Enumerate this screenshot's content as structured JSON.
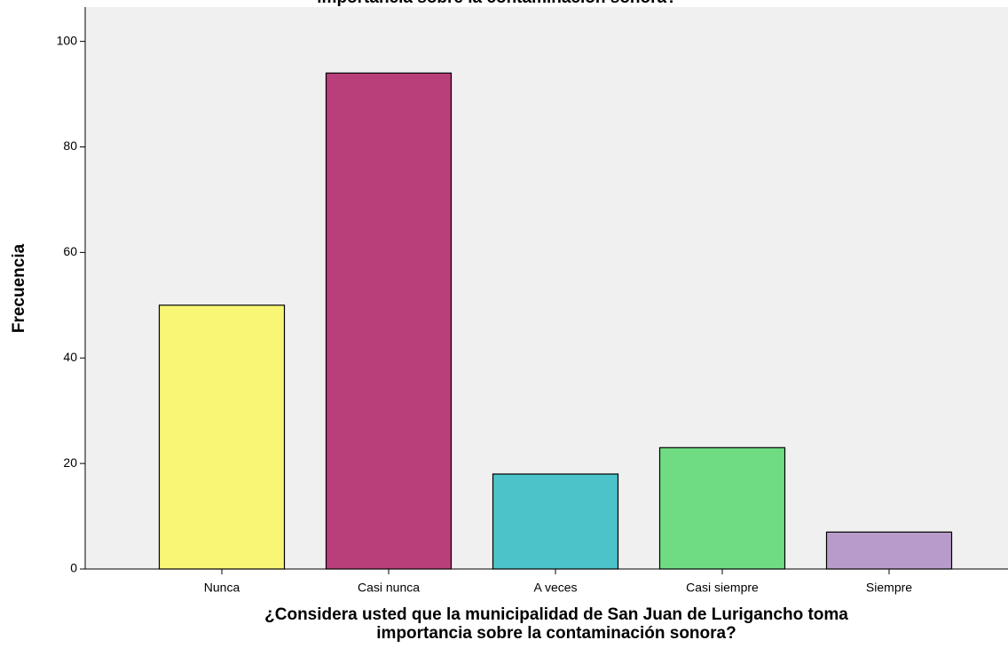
{
  "chart_data": {
    "type": "bar",
    "title": "importancia sobre la contaminación sonora?",
    "ylabel": "Frecuencia",
    "xlabel": [
      "¿Considera usted que la municipalidad de San Juan de Lurigancho toma",
      "importancia sobre la contaminación sonora?"
    ],
    "categories": [
      "Nunca",
      "Casi nunca",
      "A veces",
      "Casi siempre",
      "Siempre"
    ],
    "values": [
      50,
      94,
      18,
      23,
      7
    ],
    "colors": [
      "#faf675",
      "#b93f7b",
      "#4bc3c9",
      "#6fdc83",
      "#b89bcb"
    ],
    "ylim": [
      0,
      106.5
    ],
    "yticks": [
      0,
      20,
      40,
      60,
      80,
      100
    ]
  }
}
